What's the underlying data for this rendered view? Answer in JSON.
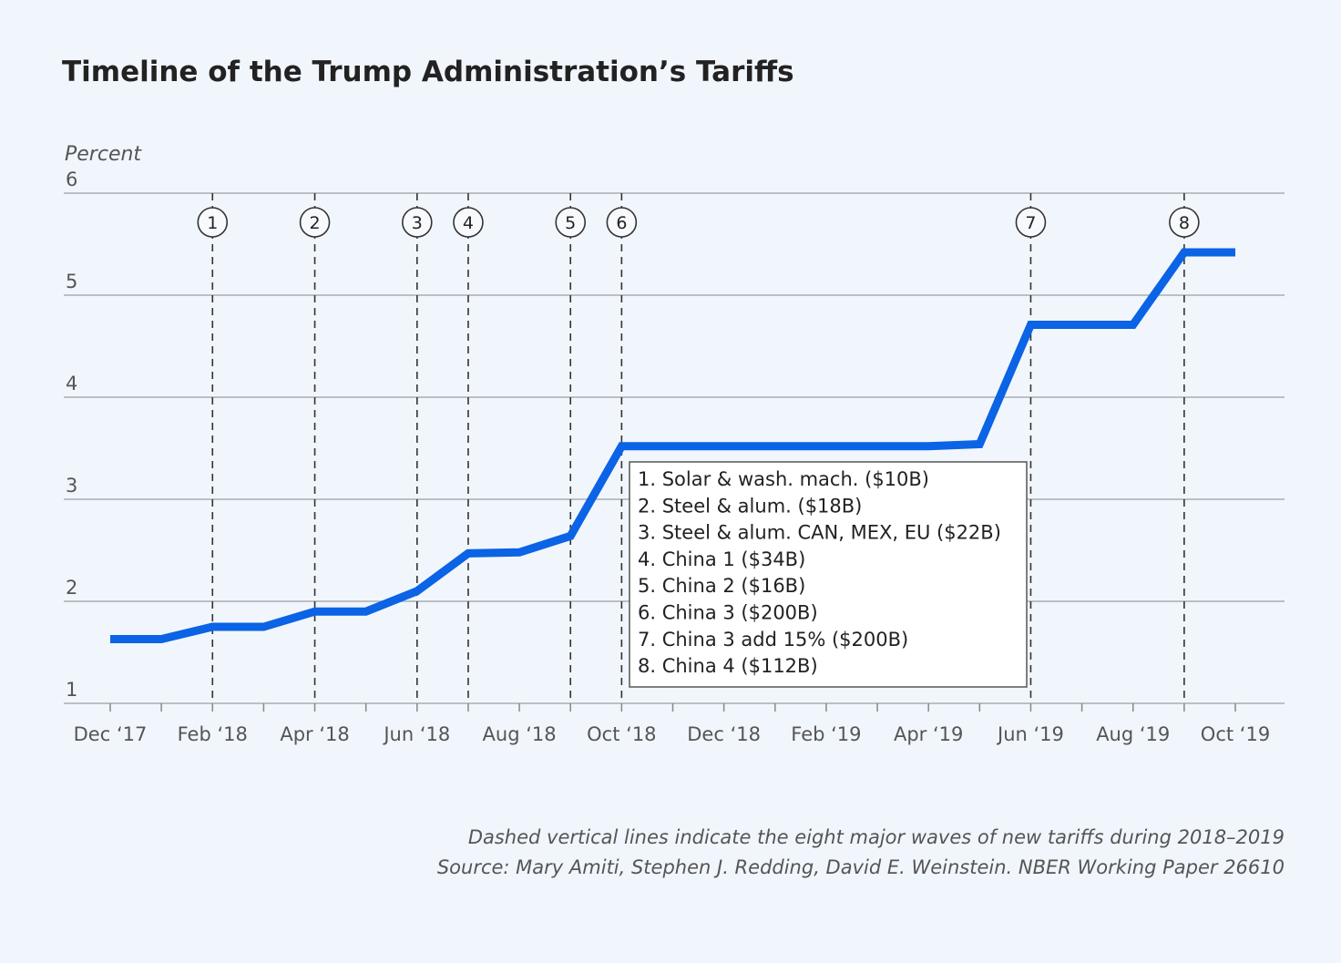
{
  "chart_data": {
    "type": "line",
    "title": "Timeline of the Trump Administration’s Tariffs",
    "ylabel": "Percent",
    "xlabel": "",
    "ylim": [
      1,
      6
    ],
    "yticks": [
      "1",
      "2",
      "3",
      "4",
      "5",
      "6"
    ],
    "grid": true,
    "x": [
      "Dec 2017",
      "Jan 2018",
      "Feb 2018",
      "Mar 2018",
      "Apr 2018",
      "May 2018",
      "Jun 2018",
      "Jul 2018",
      "Aug 2018",
      "Sep 2018",
      "Oct 2018",
      "Nov 2018",
      "Dec 2018",
      "Jan 2019",
      "Feb 2019",
      "Mar 2019",
      "Apr 2019",
      "May 2019",
      "Jun 2019",
      "Jul 2019",
      "Aug 2019",
      "Sep 2019",
      "Oct 2019"
    ],
    "xtick_labels": [
      "Dec ‘17",
      "Feb ‘18",
      "Apr ‘18",
      "Jun ‘18",
      "Aug ‘18",
      "Oct ‘18",
      "Dec ‘18",
      "Feb ‘19",
      "Apr ‘19",
      "Jun ‘19",
      "Aug ‘19",
      "Oct ‘19"
    ],
    "series": [
      {
        "values": [
          1.63,
          1.63,
          1.75,
          1.75,
          1.9,
          1.9,
          2.1,
          2.47,
          2.48,
          2.64,
          3.52,
          3.52,
          3.52,
          3.52,
          3.52,
          3.52,
          3.52,
          3.54,
          4.71,
          4.71,
          4.71,
          5.42,
          5.42
        ],
        "color": "#0b63e5"
      }
    ],
    "events": [
      {
        "label": "1",
        "x": "Feb 2018"
      },
      {
        "label": "2",
        "x": "Apr 2018"
      },
      {
        "label": "3",
        "x": "Jun 2018"
      },
      {
        "label": "4",
        "x": "Jul 2018"
      },
      {
        "label": "5",
        "x": "Sep 2018"
      },
      {
        "label": "6",
        "x": "Oct 2018"
      },
      {
        "label": "7",
        "x": "Jun 2019"
      },
      {
        "label": "8",
        "x": "Sep 2019"
      }
    ],
    "legend": {
      "placement": "center",
      "entries": [
        "1. Solar & wash. mach. ($10B)",
        "2. Steel & alum. ($18B)",
        "3. Steel & alum. CAN, MEX, EU ($22B)",
        "4. China 1 ($34B)",
        "5. China 2 ($16B)",
        "6. China 3 ($200B)",
        "7. China 3 add 15% ($200B)",
        "8. China 4 ($112B)"
      ]
    },
    "notes": [
      "Dashed vertical lines indicate the eight major waves of new tariffs during 2018–2019",
      "Source: Mary Amiti, Stephen J. Redding, David E. Weinstein. NBER Working Paper 26610"
    ]
  }
}
